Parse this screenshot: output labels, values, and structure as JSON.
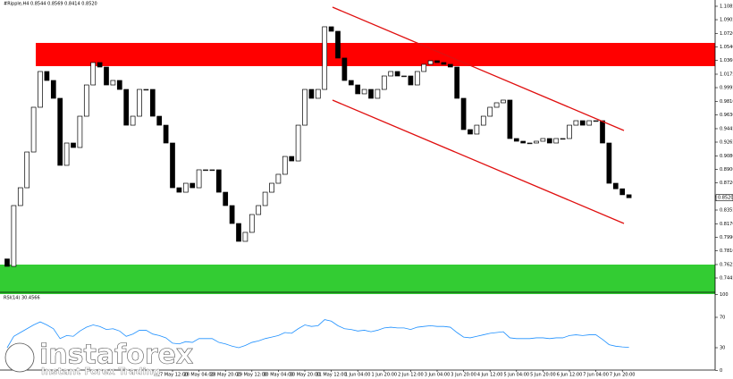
{
  "chart_data": {
    "type": "candlestick",
    "title": "#Ripple,H4 0.8544 0.8569 0.8414 0.8520",
    "categories": [
      null,
      null,
      null,
      null,
      null,
      null,
      null,
      null,
      null,
      null,
      null,
      null,
      null,
      null,
      null,
      null,
      null,
      null,
      null,
      null,
      null,
      null,
      null,
      null,
      null,
      "27 May 12:00",
      null,
      null,
      null,
      "28 May 04:00",
      null,
      null,
      null,
      "28 May 20:00",
      null,
      null,
      null,
      "29 May 12:00",
      null,
      null,
      null,
      "30 May 04:00",
      null,
      null,
      null,
      "30 May 20:00",
      null,
      null,
      null,
      "31 May 12:00",
      null,
      null,
      null,
      "1 Jun 04:00",
      null,
      null,
      null,
      "1 Jun 20:00",
      null,
      null,
      null,
      "2 Jun 12:00",
      null,
      null,
      null,
      "3 Jun 04:00",
      null,
      null,
      null,
      "3 Jun 20:00",
      null,
      null,
      null,
      "4 Jun 12:00",
      null,
      null,
      null,
      "5 Jun 04:00",
      null,
      null,
      null,
      "5 Jun 20:00",
      null,
      null,
      null,
      "6 Jun 12:00",
      null,
      null,
      null,
      "7 Jun 04:00",
      null,
      null,
      null,
      "7 Jun 20:00",
      null
    ],
    "open": [
      0.77,
      0.7601,
      0.8415,
      0.8654,
      0.9133,
      0.9732,
      1.0211,
      1.0091,
      0.9852,
      0.8954,
      0.9253,
      0.9193,
      0.9612,
      1.0031,
      1.0331,
      1.0271,
      1.0031,
      1.0091,
      0.9971,
      0.9492,
      0.9612,
      0.9971,
      0.9971,
      0.9612,
      0.9492,
      0.9253,
      0.8654,
      0.8594,
      0.8714,
      0.8654,
      0.8894,
      0.8894,
      0.8894,
      0.8594,
      0.8415,
      0.8175,
      0.7936,
      0.8056,
      0.8295,
      0.8415,
      0.8594,
      0.8714,
      0.8834,
      0.9073,
      0.9013,
      0.9492,
      0.9971,
      0.9852,
      0.9971,
      1.081,
      1.075,
      1.0391,
      1.0091,
      1.0031,
      0.9912,
      0.9971,
      0.9852,
      0.9971,
      1.0151,
      1.0211,
      1.0151,
      1.0151,
      1.0031,
      1.0211,
      1.0307,
      1.0355,
      1.0331,
      1.0307,
      1.0271,
      0.9852,
      0.9433,
      0.9373,
      0.9492,
      0.9612,
      0.9732,
      0.9792,
      0.9828,
      0.9313,
      0.9277,
      0.9253,
      0.9253,
      0.9277,
      0.9313,
      0.9253,
      0.9313,
      0.9313,
      0.9492,
      0.9552,
      0.9492,
      0.9552,
      0.9552,
      0.9253,
      0.8714,
      0.864,
      0.856
    ],
    "close": [
      0.7601,
      0.8415,
      0.8654,
      0.9133,
      0.9732,
      1.0211,
      1.0091,
      0.9852,
      0.8954,
      0.9253,
      0.9193,
      0.9612,
      1.0031,
      1.0331,
      1.0271,
      1.0031,
      1.0091,
      0.9971,
      0.9492,
      0.9612,
      0.9971,
      0.9971,
      0.9612,
      0.9492,
      0.9253,
      0.8654,
      0.8594,
      0.8714,
      0.8654,
      0.8894,
      0.8894,
      0.8894,
      0.8594,
      0.8415,
      0.8175,
      0.7936,
      0.8056,
      0.8295,
      0.8415,
      0.8594,
      0.8714,
      0.8834,
      0.9073,
      0.9013,
      0.9492,
      0.9971,
      0.9852,
      0.9971,
      1.081,
      1.075,
      1.0391,
      1.0091,
      1.0031,
      0.9912,
      0.9971,
      0.9852,
      0.9971,
      1.0151,
      1.0211,
      1.0151,
      1.0151,
      1.0031,
      1.0211,
      1.0307,
      1.0355,
      1.0331,
      1.0307,
      1.0271,
      0.9852,
      0.9433,
      0.9373,
      0.9492,
      0.9612,
      0.9732,
      0.9792,
      0.9828,
      0.9313,
      0.9277,
      0.9253,
      0.9253,
      0.9277,
      0.9313,
      0.9253,
      0.9313,
      0.9313,
      0.9492,
      0.9552,
      0.9492,
      0.9552,
      0.9552,
      0.9253,
      0.8714,
      0.864,
      0.856,
      0.852
    ],
    "ylim": [
      0.7445,
      1.1085
    ],
    "yticks": [
      {
        "value": 1.1085,
        "label": "1.1085"
      },
      {
        "value": 1.0905,
        "label": "1.0905"
      },
      {
        "value": 1.072,
        "label": "1.0720"
      },
      {
        "value": 1.054,
        "label": "1.0540"
      },
      {
        "value": 1.036,
        "label": "1.0360"
      },
      {
        "value": 1.0175,
        "label": "1.0175"
      },
      {
        "value": 0.9995,
        "label": "0.9995"
      },
      {
        "value": 0.981,
        "label": "0.9810"
      },
      {
        "value": 0.963,
        "label": "0.9630"
      },
      {
        "value": 0.9445,
        "label": "0.9445"
      },
      {
        "value": 0.9265,
        "label": "0.9265"
      },
      {
        "value": 0.908,
        "label": "0.9080"
      },
      {
        "value": 0.89,
        "label": "0.8900"
      },
      {
        "value": 0.872,
        "label": "0.8720"
      },
      {
        "value": 0.8535,
        "label": "0.8535"
      },
      {
        "value": 0.8355,
        "label": "0.8355"
      },
      {
        "value": 0.817,
        "label": "0.8170"
      },
      {
        "value": 0.799,
        "label": "0.7990"
      },
      {
        "value": 0.781,
        "label": "0.7810"
      },
      {
        "value": 0.7625,
        "label": "0.7625"
      },
      {
        "value": 0.7445,
        "label": "0.7445"
      }
    ],
    "price_marker": {
      "value": 0.852,
      "label": "0.8520"
    },
    "rsi": {
      "title": "RSI(14) 30.4566",
      "color": "#1e90ff",
      "ylim": [
        0,
        100
      ],
      "yticks": [
        100,
        70,
        30,
        0
      ],
      "values": [
        30,
        45,
        50,
        55,
        60,
        64,
        60,
        55,
        42,
        46,
        45,
        52,
        57,
        60,
        58,
        54,
        55,
        52,
        45,
        48,
        53,
        53,
        48,
        46,
        43,
        36,
        35,
        38,
        37,
        42,
        42,
        42,
        37,
        35,
        32,
        30,
        33,
        37,
        39,
        42,
        44,
        46,
        50,
        49,
        55,
        60,
        58,
        59,
        67,
        65,
        59,
        55,
        54,
        52,
        53,
        51,
        53,
        56,
        57,
        56,
        56,
        54,
        57,
        58,
        59,
        58,
        58,
        57,
        50,
        44,
        43,
        45,
        47,
        49,
        50,
        51,
        43,
        42,
        42,
        42,
        43,
        43,
        42,
        43,
        43,
        46,
        47,
        46,
        47,
        47,
        41,
        34,
        32,
        31,
        30.4566
      ]
    }
  },
  "watermark": {
    "brand": "instaforex",
    "tagline": "Instant Forex Trading"
  }
}
